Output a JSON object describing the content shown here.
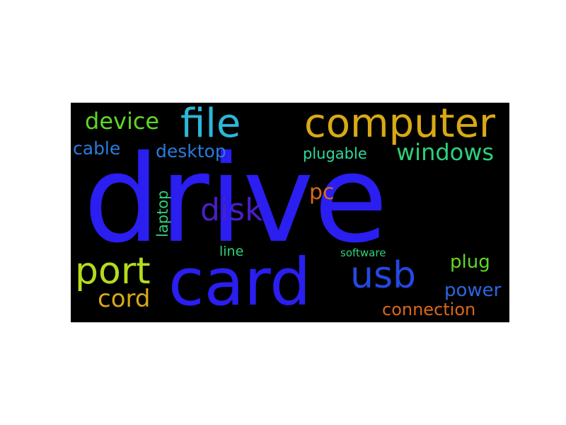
{
  "wordcloud": {
    "background": "#000000",
    "words": {
      "drive": {
        "text": "drive",
        "color": "#2a1ef0"
      },
      "card": {
        "text": "card",
        "color": "#2a1ef0"
      },
      "computer": {
        "text": "computer",
        "color": "#d8a917"
      },
      "file": {
        "text": "file",
        "color": "#2bb7d8"
      },
      "port": {
        "text": "port",
        "color": "#b4dc1e"
      },
      "usb": {
        "text": "usb",
        "color": "#2448e0"
      },
      "disk": {
        "text": "disk",
        "color": "#4a1ec8"
      },
      "device": {
        "text": "device",
        "color": "#5fd626"
      },
      "windows": {
        "text": "windows",
        "color": "#2ed07a"
      },
      "cord": {
        "text": "cord",
        "color": "#d8a917"
      },
      "pc": {
        "text": "pc",
        "color": "#d86a1a"
      },
      "desktop": {
        "text": "desktop",
        "color": "#2a7be0"
      },
      "cable": {
        "text": "cable",
        "color": "#2a7be0"
      },
      "plugable": {
        "text": "plugable",
        "color": "#2ed9a0"
      },
      "laptop": {
        "text": "laptop",
        "color": "#2ed07a"
      },
      "power": {
        "text": "power",
        "color": "#2a66e0"
      },
      "plug": {
        "text": "plug",
        "color": "#5fd626"
      },
      "connection": {
        "text": "connection",
        "color": "#d8681a"
      },
      "line": {
        "text": "line",
        "color": "#2ed07a"
      },
      "software": {
        "text": "software",
        "color": "#2ed07a"
      }
    }
  }
}
